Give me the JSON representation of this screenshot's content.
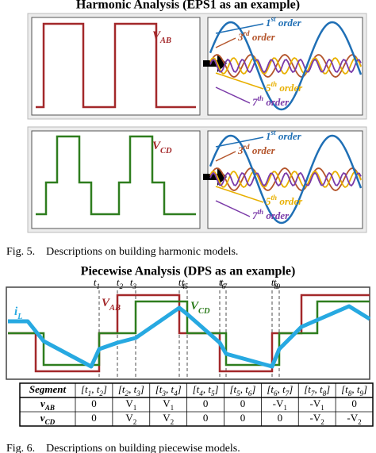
{
  "figure5": {
    "title": "Harmonic Analysis (EPS1 as an example)",
    "panels": [
      {
        "label": "VAB",
        "orders": [
          "1st order",
          "3rd order",
          "5th order",
          "7th order"
        ]
      },
      {
        "label": "VCD",
        "orders": [
          "1st order",
          "3rd order",
          "5th order",
          "7th order"
        ]
      }
    ],
    "caption": "Fig. 5.    Descriptions on building harmonic models."
  },
  "figure6": {
    "title": "Piecewise Analysis (DPS as an example)",
    "time_labels": [
      "t1",
      "t2",
      "t3",
      "t4",
      "t5",
      "t6",
      "t7",
      "t8",
      "t9"
    ],
    "wave_labels": [
      "VAB",
      "VCD",
      "iL"
    ],
    "table": {
      "header": [
        "Segment",
        "[t1, t2]",
        "[t2, t3]",
        "[t3, t4]",
        "[t4, t5]",
        "[t5, t6]",
        "[t6, t7]",
        "[t7, t8]",
        "[t8, t9]"
      ],
      "rows": [
        [
          "vAB",
          "0",
          "V1",
          "V1",
          "0",
          "0",
          "-V1",
          "-V1",
          "0"
        ],
        [
          "vCD",
          "0",
          "V2",
          "V2",
          "0",
          "0",
          "0",
          "-V2",
          "-V2"
        ]
      ]
    },
    "caption": "Fig. 6.    Descriptions on building piecewise models."
  }
}
